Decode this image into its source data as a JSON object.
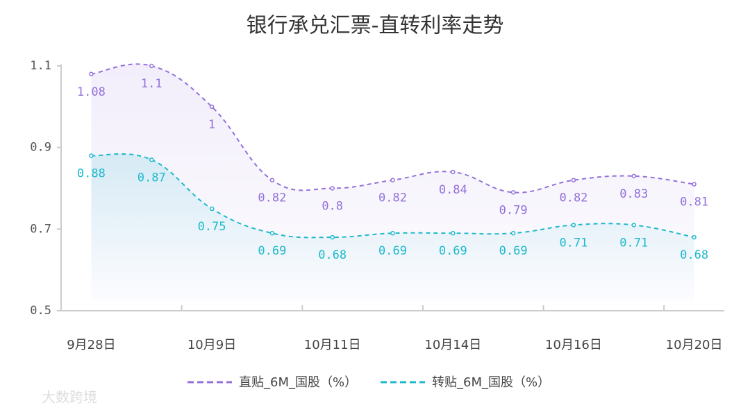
{
  "chart_data": {
    "type": "line",
    "title": "银行承兑汇票-直转利率走势",
    "categories": [
      "9月28日",
      null,
      "10月9日",
      null,
      "10月11日",
      null,
      "10月14日",
      null,
      "10月16日",
      null,
      "10月20日"
    ],
    "series": [
      {
        "name": "直贴_6M_国股（%）",
        "color": "#9370db",
        "values": [
          1.08,
          1.1,
          1,
          0.82,
          0.8,
          0.82,
          0.84,
          0.79,
          0.82,
          0.83,
          0.81
        ]
      },
      {
        "name": "转贴_6M_国股（%）",
        "color": "#1eb9cc",
        "values": [
          0.88,
          0.87,
          0.75,
          0.69,
          0.68,
          0.69,
          0.69,
          0.69,
          0.71,
          0.71,
          0.68
        ]
      }
    ],
    "ylim": [
      0.5,
      1.1
    ],
    "yticks": [
      0.5,
      0.7,
      0.9,
      1.1
    ],
    "grid": false,
    "legend": "bottom",
    "watermark": "大数跨境"
  }
}
